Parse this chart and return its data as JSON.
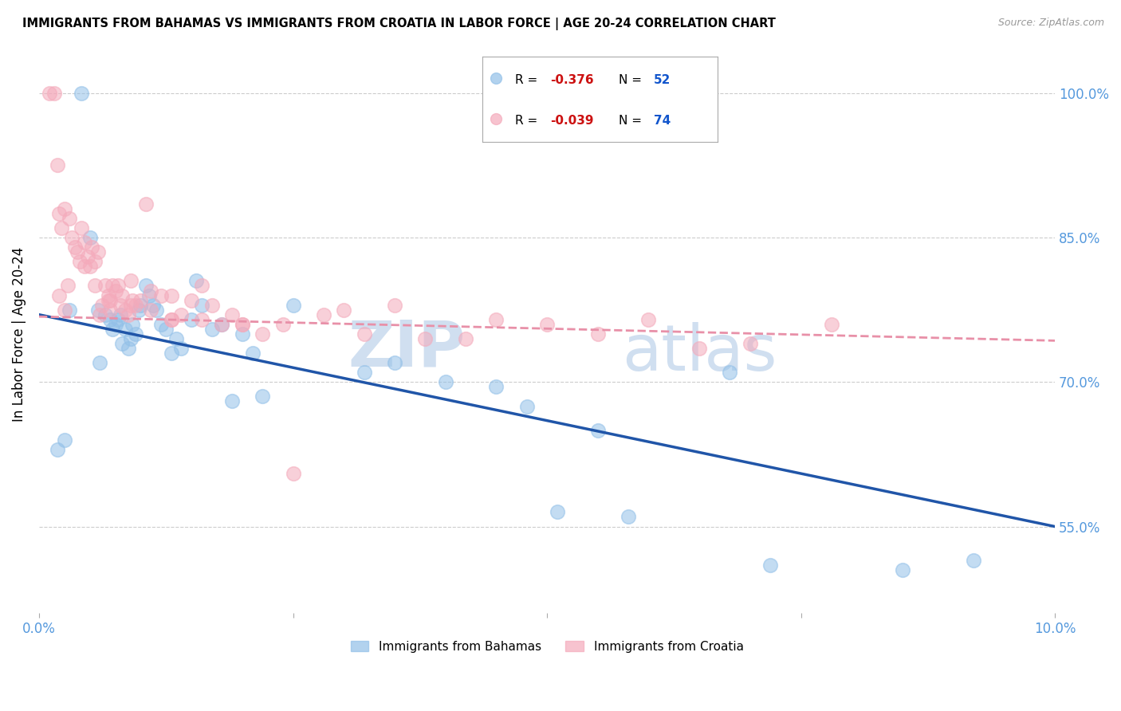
{
  "title": "IMMIGRANTS FROM BAHAMAS VS IMMIGRANTS FROM CROATIA IN LABOR FORCE | AGE 20-24 CORRELATION CHART",
  "source": "Source: ZipAtlas.com",
  "ylabel": "In Labor Force | Age 20-24",
  "yticks": [
    55.0,
    70.0,
    85.0,
    100.0
  ],
  "xmin": 0.0,
  "xmax": 10.0,
  "ymin": 46.0,
  "ymax": 104.0,
  "bahamas_color": "#92C0E8",
  "croatia_color": "#F4AABB",
  "bahamas_line_color": "#2055A8",
  "croatia_line_color": "#E890A8",
  "bahamas_R": -0.376,
  "bahamas_N": 52,
  "croatia_R": -0.039,
  "croatia_N": 74,
  "watermark_color": "#D0DFF0",
  "bahamas_x": [
    0.18,
    0.25,
    0.42,
    0.5,
    0.58,
    0.65,
    0.7,
    0.72,
    0.75,
    0.78,
    0.8,
    0.82,
    0.85,
    0.88,
    0.9,
    0.92,
    0.95,
    0.98,
    1.0,
    1.05,
    1.08,
    1.12,
    1.15,
    1.2,
    1.25,
    1.3,
    1.35,
    1.4,
    1.5,
    1.55,
    1.6,
    1.7,
    1.8,
    1.9,
    2.0,
    2.1,
    2.2,
    2.5,
    3.2,
    4.0,
    4.5,
    4.8,
    5.1,
    5.5,
    5.8,
    6.8,
    7.2,
    8.5,
    9.2,
    0.3,
    0.6,
    3.5
  ],
  "bahamas_y": [
    63.0,
    64.0,
    100.0,
    85.0,
    77.5,
    77.0,
    76.5,
    75.5,
    76.0,
    76.5,
    77.0,
    74.0,
    75.5,
    73.5,
    74.5,
    76.0,
    75.0,
    77.5,
    78.0,
    80.0,
    79.0,
    78.0,
    77.5,
    76.0,
    75.5,
    73.0,
    74.5,
    73.5,
    76.5,
    80.5,
    78.0,
    75.5,
    76.0,
    68.0,
    75.0,
    73.0,
    68.5,
    78.0,
    71.0,
    70.0,
    69.5,
    67.5,
    56.5,
    65.0,
    56.0,
    71.0,
    51.0,
    50.5,
    51.5,
    77.5,
    72.0,
    72.0
  ],
  "croatia_x": [
    0.1,
    0.15,
    0.18,
    0.2,
    0.22,
    0.25,
    0.28,
    0.3,
    0.32,
    0.35,
    0.38,
    0.4,
    0.42,
    0.45,
    0.48,
    0.5,
    0.52,
    0.55,
    0.58,
    0.6,
    0.62,
    0.65,
    0.68,
    0.7,
    0.72,
    0.75,
    0.78,
    0.8,
    0.82,
    0.85,
    0.88,
    0.9,
    0.92,
    0.95,
    1.0,
    1.05,
    1.1,
    1.2,
    1.3,
    1.4,
    1.5,
    1.6,
    1.7,
    1.8,
    1.9,
    2.0,
    2.2,
    2.5,
    2.8,
    3.0,
    0.2,
    0.45,
    0.68,
    0.9,
    1.1,
    1.3,
    1.6,
    2.0,
    3.5,
    4.5,
    5.0,
    5.5,
    6.0,
    7.0,
    7.8,
    0.25,
    0.55,
    0.7,
    1.3,
    2.4,
    3.2,
    3.8,
    4.2,
    6.5
  ],
  "croatia_y": [
    100.0,
    100.0,
    92.5,
    87.5,
    86.0,
    88.0,
    80.0,
    87.0,
    85.0,
    84.0,
    83.5,
    82.5,
    86.0,
    84.5,
    83.0,
    82.0,
    84.0,
    82.5,
    83.5,
    77.0,
    78.0,
    80.0,
    79.0,
    78.5,
    80.0,
    79.5,
    80.0,
    78.0,
    79.0,
    77.5,
    77.0,
    80.5,
    78.5,
    78.0,
    78.5,
    88.5,
    79.5,
    79.0,
    79.0,
    77.0,
    78.5,
    80.0,
    78.0,
    76.0,
    77.0,
    76.0,
    75.0,
    60.5,
    77.0,
    77.5,
    79.0,
    82.0,
    78.5,
    78.0,
    77.5,
    76.5,
    76.5,
    76.0,
    78.0,
    76.5,
    76.0,
    75.0,
    76.5,
    74.0,
    76.0,
    77.5,
    80.0,
    77.5,
    76.5,
    76.0,
    75.0,
    74.5,
    74.5,
    73.5
  ]
}
